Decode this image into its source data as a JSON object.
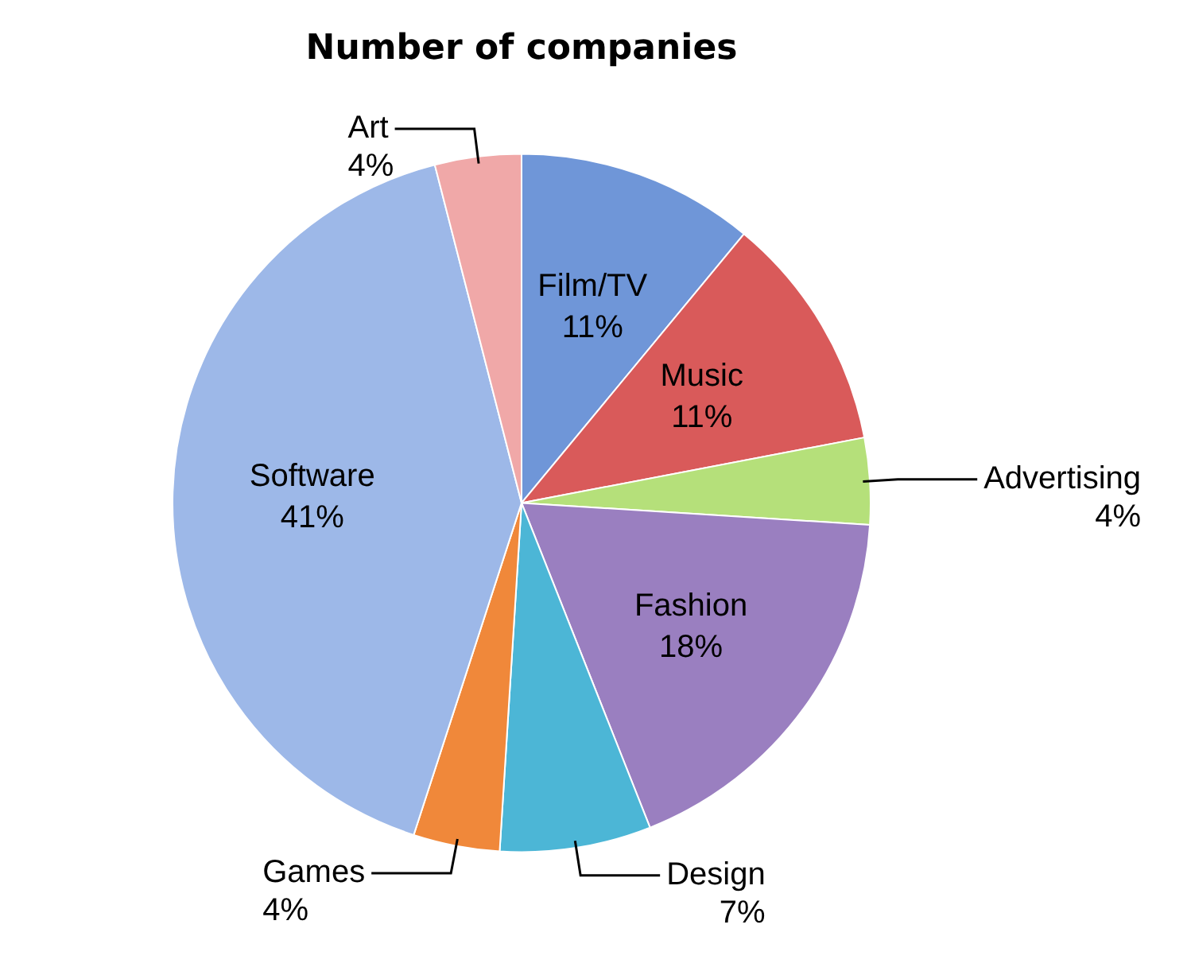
{
  "chart_data": {
    "type": "pie",
    "title": "Number of companies",
    "categories": [
      "Film/TV",
      "Music",
      "Advertising",
      "Fashion",
      "Design",
      "Games",
      "Software",
      "Art"
    ],
    "values": [
      11,
      11,
      4,
      18,
      7,
      4,
      41,
      4
    ],
    "value_labels": [
      "11%",
      "11%",
      "4%",
      "18%",
      "7%",
      "4%",
      "41%",
      "4%"
    ],
    "colors": [
      "#6f96d8",
      "#d95a5a",
      "#b5e07a",
      "#9a7fc0",
      "#4cb6d6",
      "#f0883a",
      "#9db8e8",
      "#f0a8a8"
    ],
    "legend": false
  }
}
